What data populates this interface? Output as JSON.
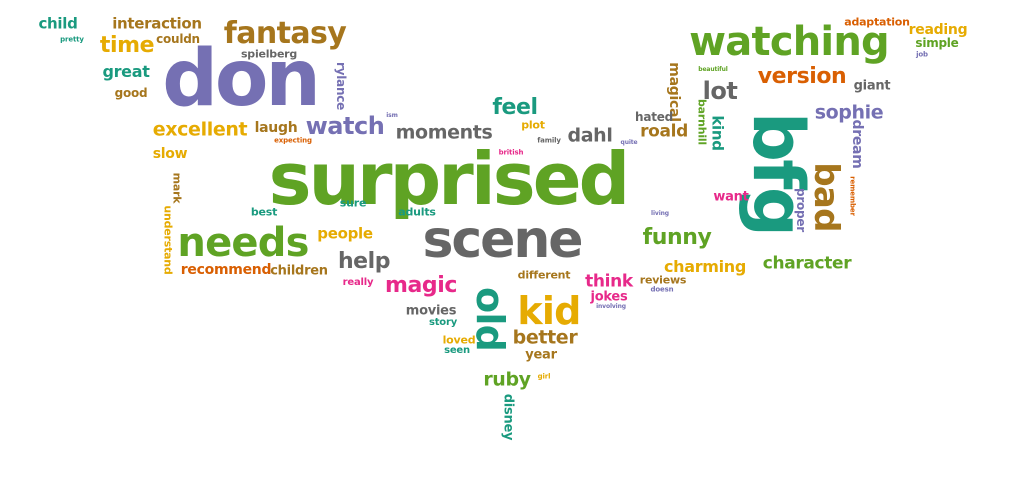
{
  "colors": {
    "green": "#5fa324",
    "teal": "#1a9a7f",
    "purple": "#7570b3",
    "gray": "#666666",
    "brown": "#a6761d",
    "orange": "#e6ab02",
    "rust": "#d95f02",
    "magenta": "#e7298a"
  },
  "words": [
    {
      "text": "child",
      "color": "teal"
    },
    {
      "text": "pretty",
      "color": "teal"
    },
    {
      "text": "interaction",
      "color": "brown"
    },
    {
      "text": "couldn",
      "color": "brown"
    },
    {
      "text": "time",
      "color": "orange"
    },
    {
      "text": "fantasy",
      "color": "brown"
    },
    {
      "text": "spielberg",
      "color": "gray"
    },
    {
      "text": "don",
      "color": "purple"
    },
    {
      "text": "great",
      "color": "teal"
    },
    {
      "text": "good",
      "color": "brown"
    },
    {
      "text": "rylance",
      "color": "purple"
    },
    {
      "text": "excellent",
      "color": "orange"
    },
    {
      "text": "laugh",
      "color": "brown"
    },
    {
      "text": "watch",
      "color": "purple"
    },
    {
      "text": "feel",
      "color": "teal"
    },
    {
      "text": "moments",
      "color": "gray"
    },
    {
      "text": "plot",
      "color": "orange"
    },
    {
      "text": "family",
      "color": "gray"
    },
    {
      "text": "dahl",
      "color": "gray"
    },
    {
      "text": "ism",
      "color": "purple"
    },
    {
      "text": "expecting",
      "color": "rust"
    },
    {
      "text": "british",
      "color": "magenta"
    },
    {
      "text": "slow",
      "color": "orange"
    },
    {
      "text": "mark",
      "color": "brown"
    },
    {
      "text": "understand",
      "color": "orange"
    },
    {
      "text": "surprised",
      "color": "green"
    },
    {
      "text": "best",
      "color": "teal"
    },
    {
      "text": "sure",
      "color": "teal"
    },
    {
      "text": "adults",
      "color": "teal"
    },
    {
      "text": "needs",
      "color": "green"
    },
    {
      "text": "people",
      "color": "orange"
    },
    {
      "text": "scene",
      "color": "gray"
    },
    {
      "text": "help",
      "color": "gray"
    },
    {
      "text": "recommend",
      "color": "rust"
    },
    {
      "text": "children",
      "color": "brown"
    },
    {
      "text": "really",
      "color": "magenta"
    },
    {
      "text": "magic",
      "color": "magenta"
    },
    {
      "text": "different",
      "color": "brown"
    },
    {
      "text": "movies",
      "color": "gray"
    },
    {
      "text": "story",
      "color": "teal"
    },
    {
      "text": "old",
      "color": "teal"
    },
    {
      "text": "kid",
      "color": "orange"
    },
    {
      "text": "better",
      "color": "brown"
    },
    {
      "text": "loved",
      "color": "orange"
    },
    {
      "text": "seen",
      "color": "teal"
    },
    {
      "text": "year",
      "color": "brown"
    },
    {
      "text": "ruby",
      "color": "green"
    },
    {
      "text": "girl",
      "color": "orange"
    },
    {
      "text": "disney",
      "color": "teal"
    },
    {
      "text": "watching",
      "color": "green"
    },
    {
      "text": "adaptation",
      "color": "rust"
    },
    {
      "text": "reading",
      "color": "orange"
    },
    {
      "text": "simple",
      "color": "green"
    },
    {
      "text": "job",
      "color": "purple"
    },
    {
      "text": "version",
      "color": "rust"
    },
    {
      "text": "beautiful",
      "color": "green"
    },
    {
      "text": "magical",
      "color": "brown"
    },
    {
      "text": "giant",
      "color": "gray"
    },
    {
      "text": "lot",
      "color": "gray"
    },
    {
      "text": "barnhill",
      "color": "green"
    },
    {
      "text": "hated",
      "color": "gray"
    },
    {
      "text": "sophie",
      "color": "purple"
    },
    {
      "text": "roald",
      "color": "brown"
    },
    {
      "text": "kind",
      "color": "teal"
    },
    {
      "text": "quite",
      "color": "purple"
    },
    {
      "text": "bfg",
      "color": "teal"
    },
    {
      "text": "dream",
      "color": "purple"
    },
    {
      "text": "bad",
      "color": "brown"
    },
    {
      "text": "want",
      "color": "magenta"
    },
    {
      "text": "proper",
      "color": "purple"
    },
    {
      "text": "remember",
      "color": "rust"
    },
    {
      "text": "living",
      "color": "purple"
    },
    {
      "text": "funny",
      "color": "green"
    },
    {
      "text": "charming",
      "color": "orange"
    },
    {
      "text": "character",
      "color": "green"
    },
    {
      "text": "think",
      "color": "magenta"
    },
    {
      "text": "reviews",
      "color": "brown"
    },
    {
      "text": "doesn",
      "color": "purple"
    },
    {
      "text": "jokes",
      "color": "magenta"
    },
    {
      "text": "involving",
      "color": "purple"
    }
  ]
}
